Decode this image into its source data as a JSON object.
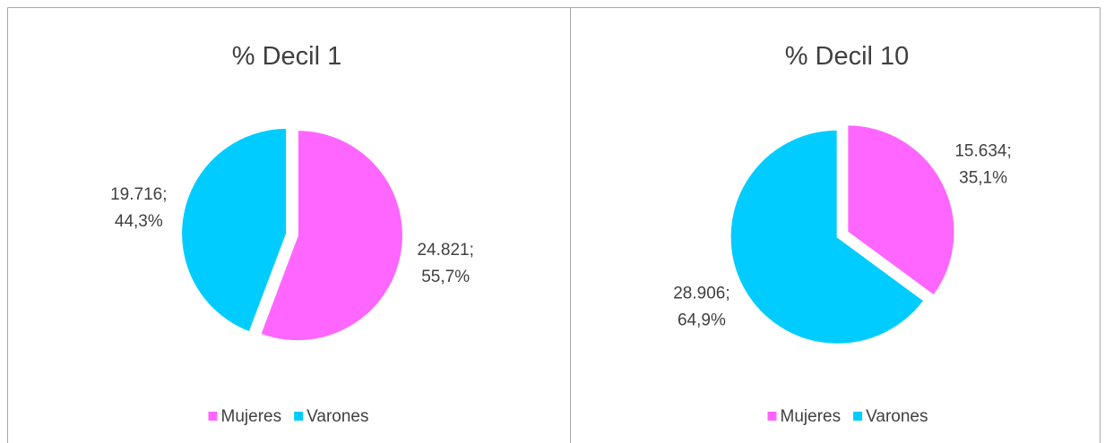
{
  "chart_data": [
    {
      "type": "pie",
      "title": "% Decil 1",
      "categories": [
        "Mujeres",
        "Varones"
      ],
      "values": [
        24821,
        19716
      ],
      "value_labels": [
        [
          "24.821;",
          "55,7%"
        ],
        [
          "19.716;",
          "44,3%"
        ]
      ],
      "colors": [
        "#ff66ff",
        "#00ccff"
      ],
      "legend": "bottom"
    },
    {
      "type": "pie",
      "title": "% Decil 10",
      "categories": [
        "Mujeres",
        "Varones"
      ],
      "values": [
        15634,
        28906
      ],
      "value_labels": [
        [
          "15.634;",
          "35,1%"
        ],
        [
          "28.906;",
          "64,9%"
        ]
      ],
      "colors": [
        "#ff66ff",
        "#00ccff"
      ],
      "legend": "bottom"
    }
  ]
}
